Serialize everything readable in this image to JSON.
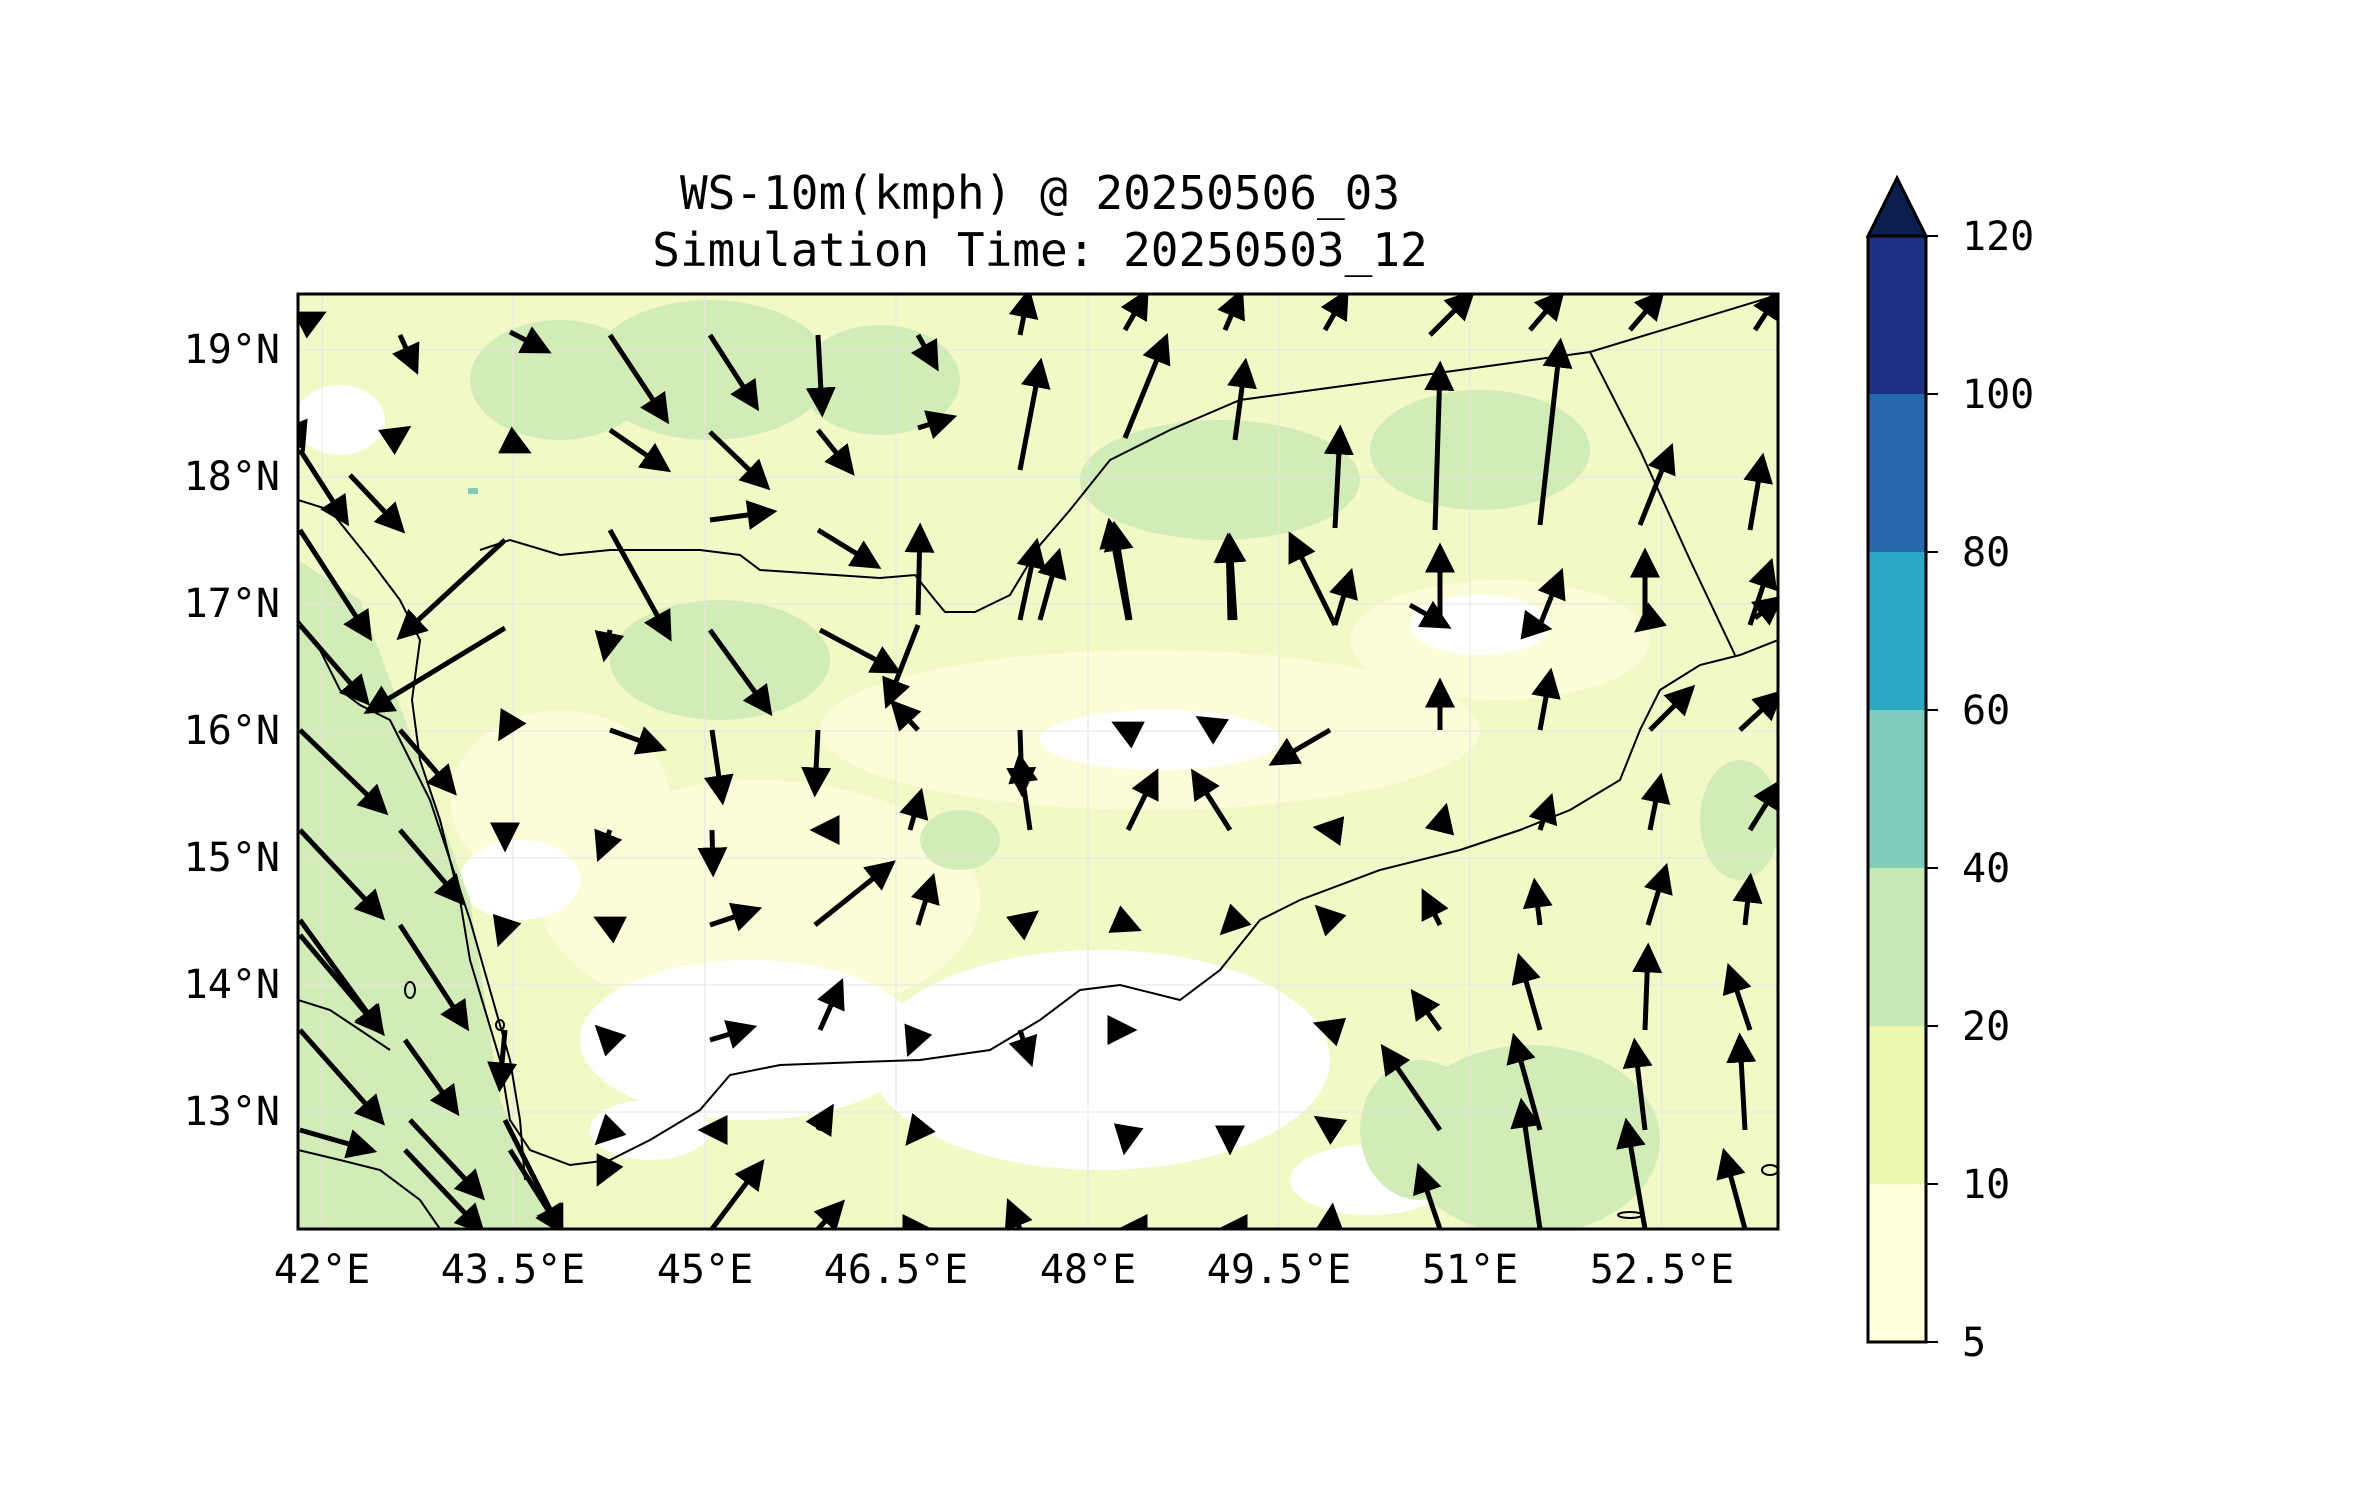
{
  "title_line1": "WS-10m(kmph) @ 20250506_03",
  "title_line2": "Simulation Time: 20250503_12",
  "lat_ticks": [
    "19°N",
    "18°N",
    "17°N",
    "16°N",
    "15°N",
    "14°N",
    "13°N"
  ],
  "lon_ticks": [
    "42°E",
    "43.5°E",
    "45°E",
    "46.5°E",
    "48°E",
    "49.5°E",
    "51°E",
    "52.5°E"
  ],
  "colorbar": {
    "labels": [
      "120",
      "100",
      "80",
      "60",
      "40",
      "20",
      "10",
      "5"
    ],
    "levels": [
      5,
      10,
      20,
      40,
      60,
      80,
      100,
      120
    ],
    "colors": [
      "#ffffd9",
      "#edf8b1",
      "#c7e9b4",
      "#7fcdbb",
      "#2ba8c6",
      "#2568ad",
      "#1f2f83"
    ],
    "extend_color": "#0a1f4d",
    "extend": "max"
  },
  "map": {
    "lon_range": [
      41.9,
      53.6
    ],
    "lat_range": [
      12.1,
      19.45
    ],
    "field_colors": {
      "low": "#ffffff",
      "c5_10": "#fbfdd6",
      "c10_20": "#eef8bd",
      "c20_40": "#d1ebb6"
    }
  }
}
